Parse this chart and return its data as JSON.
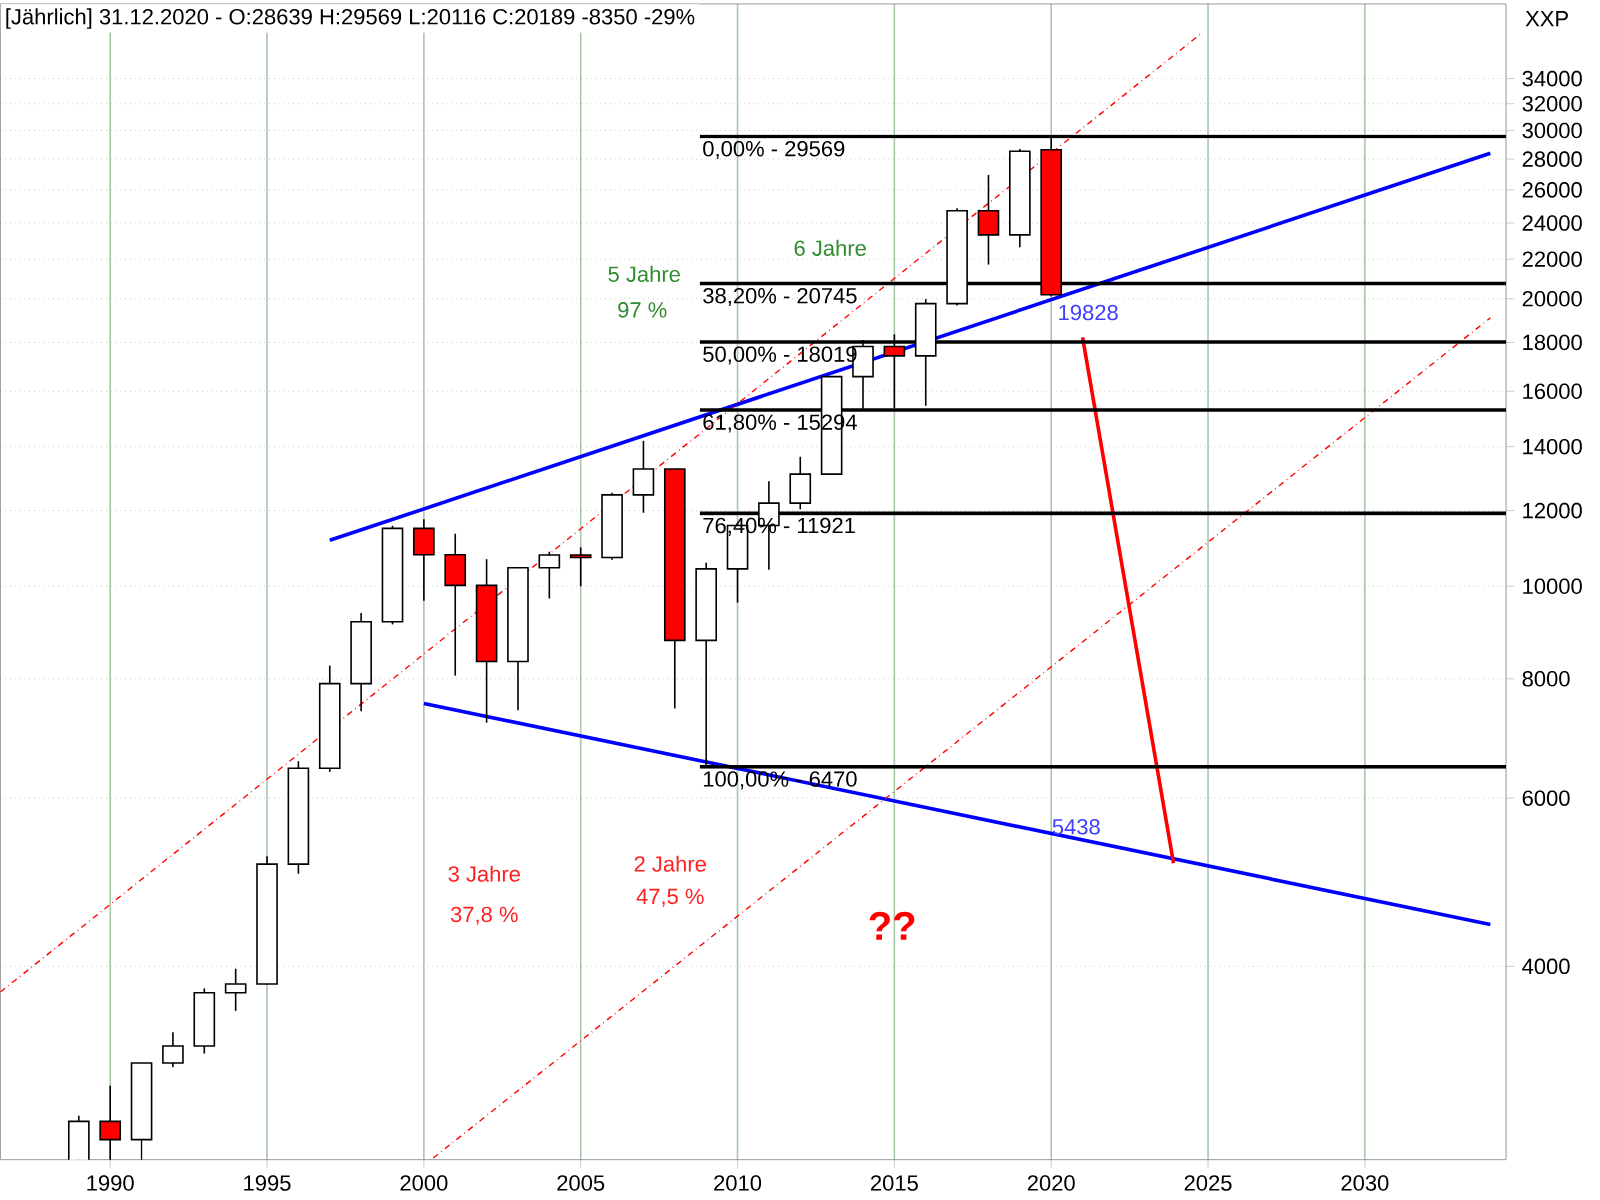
{
  "chart_data": {
    "type": "candlestick",
    "title": "[Jährlich] 31.12.2020 - O:28639 H:29569 L:20116 C:20189 -8350 -29%",
    "ylabel": "XXP",
    "x": [
      1989,
      1990,
      1991,
      1992,
      1993,
      1994,
      1995,
      1996,
      1997,
      1998,
      1999,
      2000,
      2001,
      2002,
      2003,
      2004,
      2005,
      2006,
      2007,
      2008,
      2009,
      2010,
      2011,
      2012,
      2013,
      2014,
      2015,
      2016,
      2017,
      2018,
      2019,
      2020
    ],
    "ohlc": [
      [
        2169,
        2791,
        2145,
        2753
      ],
      [
        2753,
        2999,
        2365,
        2634
      ],
      [
        2634,
        3169,
        2470,
        3169
      ],
      [
        3169,
        3413,
        3137,
        3301
      ],
      [
        3301,
        3794,
        3242,
        3754
      ],
      [
        3754,
        3978,
        3593,
        3834
      ],
      [
        3834,
        5216,
        3832,
        5117
      ],
      [
        5117,
        6560,
        5000,
        6448
      ],
      [
        6448,
        8259,
        6391,
        7908
      ],
      [
        7908,
        9374,
        7400,
        9181
      ],
      [
        9181,
        11568,
        9120,
        11497
      ],
      [
        11497,
        11750,
        9654,
        10787
      ],
      [
        10787,
        11350,
        8062,
        10021
      ],
      [
        10021,
        10673,
        7197,
        8342
      ],
      [
        8342,
        10462,
        7416,
        10454
      ],
      [
        10454,
        10868,
        9708,
        10783
      ],
      [
        10783,
        10984,
        10000,
        10718
      ],
      [
        10718,
        12529,
        10661,
        12463
      ],
      [
        12463,
        14198,
        11939,
        13265
      ],
      [
        13265,
        13279,
        7450,
        8776
      ],
      [
        8776,
        10580,
        6470,
        10428
      ],
      [
        10428,
        11625,
        9614,
        11578
      ],
      [
        11578,
        12876,
        10404,
        12218
      ],
      [
        12218,
        13661,
        12035,
        13104
      ],
      [
        13104,
        16588,
        13104,
        16577
      ],
      [
        16577,
        18103,
        15340,
        17823
      ],
      [
        17823,
        18351,
        15370,
        17425
      ],
      [
        17425,
        19987,
        15450,
        19763
      ],
      [
        19763,
        24876,
        19678,
        24719
      ],
      [
        24719,
        26951,
        21713,
        23327
      ],
      [
        23327,
        28701,
        22639,
        28538
      ],
      [
        28639,
        29569,
        20116,
        20189
      ]
    ],
    "colors": [
      "#ffffff",
      "#ff0000",
      "#ffffff",
      "#ffffff",
      "#ffffff",
      "#ffffff",
      "#ffffff",
      "#ffffff",
      "#ffffff",
      "#ffffff",
      "#ffffff",
      "#ff0000",
      "#ff0000",
      "#ff0000",
      "#ffffff",
      "#ffffff",
      "#ff0000",
      "#ffffff",
      "#ffffff",
      "#ff0000",
      "#ffffff",
      "#ffffff",
      "#ffffff",
      "#ffffff",
      "#ffffff",
      "#ffffff",
      "#ff0000",
      "#ffffff",
      "#ffffff",
      "#ff0000",
      "#ffffff",
      "#ff0000"
    ],
    "series": [
      {
        "type": "line",
        "color": "#0000ff",
        "line_style": "solid",
        "x": [
          1997,
          2034
        ],
        "values": [
          11170,
          28400
        ]
      },
      {
        "type": "line",
        "color": "#0000ff",
        "line_style": "solid",
        "x": [
          2000,
          2034
        ],
        "values": [
          7540,
          4425
        ]
      },
      {
        "type": "line",
        "color": "#ff0000",
        "line_style": "dashed",
        "x": [
          1986.5,
          2024.8
        ],
        "values": [
          3760,
          37950
        ]
      },
      {
        "type": "line",
        "color": "#ff0000",
        "line_style": "dashed",
        "x": [
          2000.3,
          2034
        ],
        "values": [
          2520,
          19100
        ]
      },
      {
        "type": "line",
        "color": "#ff0000",
        "line_style": "solid",
        "x": [
          2021,
          2023.9
        ],
        "values": [
          18220,
          5130
        ]
      },
      {
        "type": "line",
        "color": "#000000",
        "line_style": "solid",
        "x": [
          2008.8,
          2034.5
        ],
        "values": [
          29569,
          29569
        ]
      },
      {
        "type": "line",
        "color": "#000000",
        "line_style": "solid",
        "x": [
          2008.8,
          2034.5
        ],
        "values": [
          20745,
          20745
        ]
      },
      {
        "type": "line",
        "color": "#000000",
        "line_style": "solid",
        "x": [
          2008.8,
          2034.5
        ],
        "values": [
          18019,
          18019
        ]
      },
      {
        "type": "line",
        "color": "#000000",
        "line_style": "solid",
        "x": [
          2008.8,
          2034.5
        ],
        "values": [
          15294,
          15294
        ]
      },
      {
        "type": "line",
        "color": "#000000",
        "line_style": "solid",
        "x": [
          2008.8,
          2034.5
        ],
        "values": [
          11921,
          11921
        ]
      },
      {
        "type": "line",
        "color": "#000000",
        "line_style": "solid",
        "x": [
          2008.8,
          2034.5
        ],
        "values": [
          6470,
          6470
        ]
      }
    ],
    "annotations": [
      {
        "text": "0,00% - 29569",
        "x": 2008.8,
        "y": 29569
      },
      {
        "text": "38,20% - 20745",
        "x": 2008.8,
        "y": 20745
      },
      {
        "text": "50,00% - 18019",
        "x": 2008.8,
        "y": 18019
      },
      {
        "text": "61,80% - 15294",
        "x": 2008.8,
        "y": 15294
      },
      {
        "text": "76,40% - 11921",
        "x": 2008.8,
        "y": 11921
      },
      {
        "text": "100,00% - 6470",
        "x": 2008.8,
        "y": 6470
      },
      "5 Jahre",
      "97 %",
      "6 Jahre",
      "3 Jahre",
      "37,8 %",
      "2 Jahre",
      "47,5 %",
      "??",
      {
        "text": "19828",
        "x": 2020,
        "y": 19828
      },
      {
        "text": "5438",
        "x": 2020.8,
        "y": 5438
      }
    ],
    "xlim": [
      1986.5,
      2034.5
    ],
    "ylim": [
      2510,
      40700
    ],
    "xticks": [
      1990,
      1995,
      2000,
      2005,
      2010,
      2015,
      2020,
      2025,
      2030
    ],
    "yticks": [
      4000,
      6000,
      8000,
      10000,
      12000,
      14000,
      16000,
      18000,
      20000,
      22000,
      24000,
      26000,
      28000,
      30000,
      32000,
      34000
    ],
    "log": true,
    "grid": true
  }
}
